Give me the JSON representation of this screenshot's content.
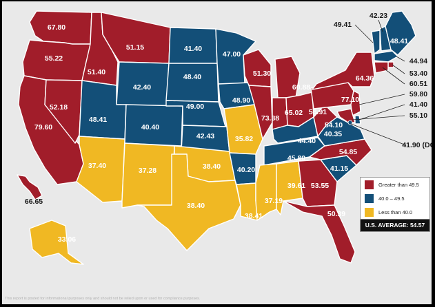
{
  "colors": {
    "high": "#a11d2a",
    "mid": "#134f78",
    "low": "#f0b823",
    "border": "#ffffff",
    "background": "#e9e9e9"
  },
  "legend": {
    "items": [
      {
        "label": "Greater than 49.5",
        "color": "high"
      },
      {
        "label": "40.0 – 49.5",
        "color": "mid"
      },
      {
        "label": "Less than 40.0",
        "color": "low"
      }
    ],
    "average_label": "U.S. AVERAGE: 54.57"
  },
  "states": {
    "WA": {
      "value": "67.80",
      "cat": "high"
    },
    "OR": {
      "value": "55.22",
      "cat": "high"
    },
    "CA": {
      "value": "79.60",
      "cat": "high"
    },
    "NV": {
      "value": "52.18",
      "cat": "high"
    },
    "ID": {
      "value": "51.40",
      "cat": "high"
    },
    "MT": {
      "value": "51.15",
      "cat": "high"
    },
    "WY": {
      "value": "42.40",
      "cat": "mid"
    },
    "UT": {
      "value": "48.41",
      "cat": "mid"
    },
    "CO": {
      "value": "40.40",
      "cat": "mid"
    },
    "AZ": {
      "value": "37.40",
      "cat": "low"
    },
    "NM": {
      "value": "37.28",
      "cat": "low"
    },
    "ND": {
      "value": "41.40",
      "cat": "mid"
    },
    "SD": {
      "value": "48.40",
      "cat": "mid"
    },
    "NE": {
      "value": "49.00",
      "cat": "mid"
    },
    "KS": {
      "value": "42.43",
      "cat": "mid"
    },
    "OK": {
      "value": "38.40",
      "cat": "low"
    },
    "TX": {
      "value": "38.40",
      "cat": "low"
    },
    "MN": {
      "value": "47.00",
      "cat": "mid"
    },
    "IA": {
      "value": "48.90",
      "cat": "mid"
    },
    "MO": {
      "value": "35.82",
      "cat": "low"
    },
    "AR": {
      "value": "40.20",
      "cat": "mid"
    },
    "LA": {
      "value": "38.41",
      "cat": "low"
    },
    "WI": {
      "value": "51.30",
      "cat": "high"
    },
    "IL": {
      "value": "73.38",
      "cat": "high"
    },
    "MI": {
      "value": "60.88",
      "cat": "high"
    },
    "IN": {
      "value": "65.02",
      "cat": "high"
    },
    "OH": {
      "value": "56.91",
      "cat": "high"
    },
    "KY": {
      "value": "44.40",
      "cat": "mid"
    },
    "TN": {
      "value": "45.80",
      "cat": "mid"
    },
    "MS": {
      "value": "37.19",
      "cat": "low"
    },
    "AL": {
      "value": "39.61",
      "cat": "low"
    },
    "GA": {
      "value": "53.55",
      "cat": "high"
    },
    "FL": {
      "value": "50.39",
      "cat": "high"
    },
    "SC": {
      "value": "41.15",
      "cat": "mid"
    },
    "NC": {
      "value": "54.85",
      "cat": "high"
    },
    "VA": {
      "value": "40.35",
      "cat": "mid"
    },
    "WV": {
      "value": "54.10",
      "cat": "high"
    },
    "PA": {
      "value": "77.10",
      "cat": "high"
    },
    "NY": {
      "value": "64.36",
      "cat": "high"
    },
    "VT": {
      "value": "49.41",
      "cat": "mid"
    },
    "NH": {
      "value": "42.23",
      "cat": "mid"
    },
    "ME": {
      "value": "48.41",
      "cat": "mid"
    },
    "MA": {
      "value": "44.94",
      "cat": "mid"
    },
    "RI": {
      "value": "53.40",
      "cat": "high"
    },
    "CT": {
      "value": "60.51",
      "cat": "high"
    },
    "NJ": {
      "value": "59.80",
      "cat": "high"
    },
    "DE": {
      "value": "41.40",
      "cat": "mid"
    },
    "MD": {
      "value": "55.10",
      "cat": "high"
    },
    "DC": {
      "value": "41.90 (DC)",
      "cat": "mid"
    },
    "AK": {
      "value": "33.06",
      "cat": "low"
    },
    "HI": {
      "value": "66.65",
      "cat": "high"
    }
  },
  "disclaimer": "This report is posted for informational purposes only and should not be relied upon or used for compliance purposes."
}
